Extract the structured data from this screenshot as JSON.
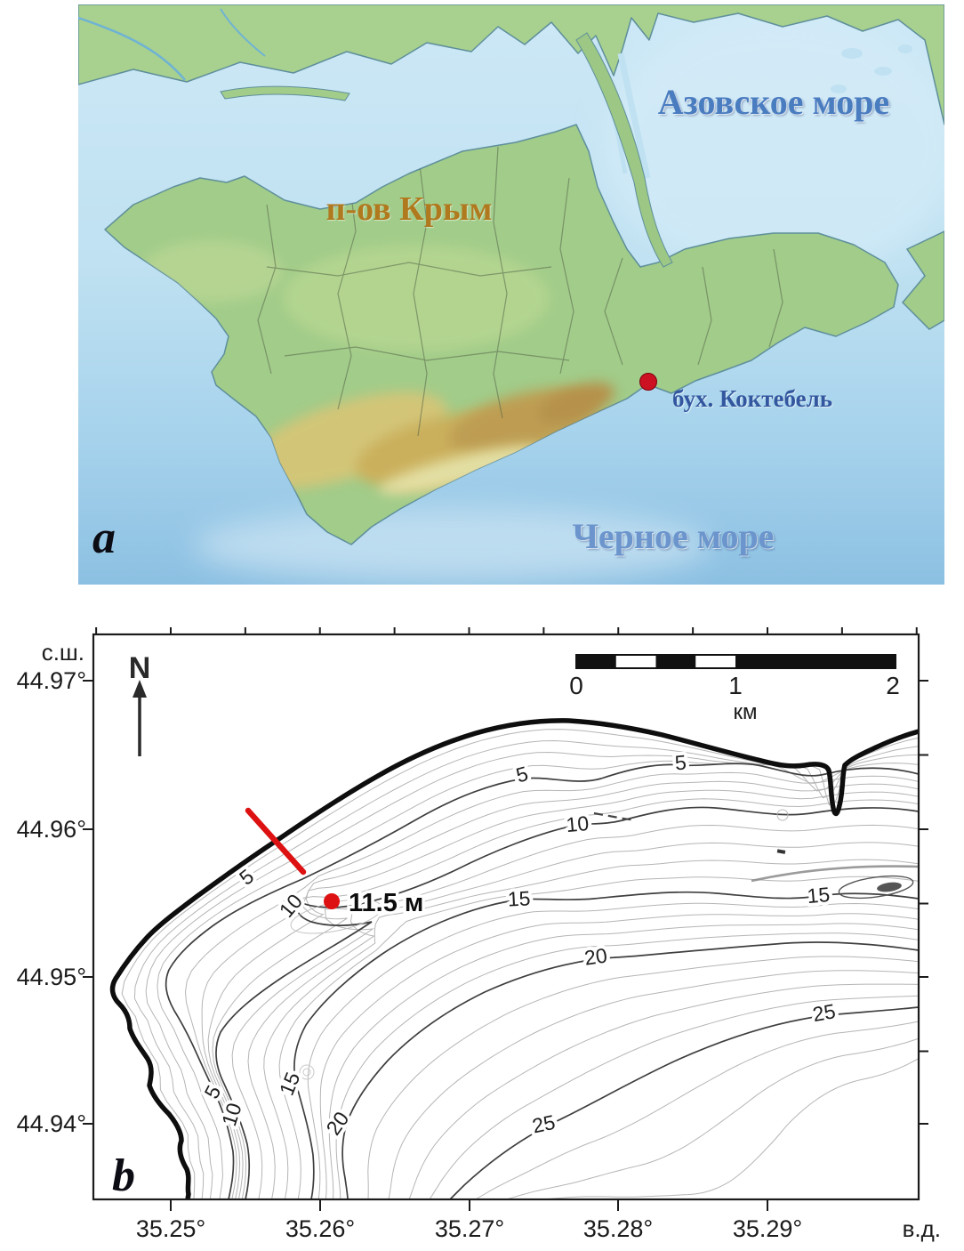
{
  "figure": {
    "panel_a_letter": "a",
    "panel_b_letter": "b"
  },
  "panel_a": {
    "labels": {
      "azov_sea": "Азовское море",
      "crimea": "п-ов Крым",
      "koktebel_bay": "бух. Коктебель",
      "black_sea": "Черное море"
    },
    "colors": {
      "sea": "#bfe1f1",
      "land": "#a2cc8a",
      "sea_label_blue": "#4a7cc0",
      "land_label_brown": "#b0791d",
      "marker_red": "#cc1122"
    }
  },
  "panel_b": {
    "axis": {
      "lat_title": "с.ш.",
      "lon_title": "в.д.",
      "lat_ticks": [
        "44.97°",
        "44.96°",
        "44.95°",
        "44.94°"
      ],
      "lon_ticks": [
        "35.25°",
        "35.26°",
        "35.27°",
        "35.28°",
        "35.29°"
      ]
    },
    "north_arrow_label": "N",
    "scale_bar": {
      "tick_0": "0",
      "tick_1": "1",
      "tick_2": "2",
      "unit": "км"
    },
    "depth_point_label": "11.5 м",
    "contour_labels": {
      "c5": "5",
      "c10": "10",
      "c15": "15",
      "c20": "20",
      "c25": "25"
    },
    "index_contours_m": [
      5,
      10,
      15,
      20,
      25
    ],
    "contour_interval_m": 1,
    "colors": {
      "coastline": "#0e0e0e",
      "index_contour": "#3f3f3f",
      "minor_contour": "#b5b5b5",
      "red_accent": "#dd1111"
    }
  }
}
